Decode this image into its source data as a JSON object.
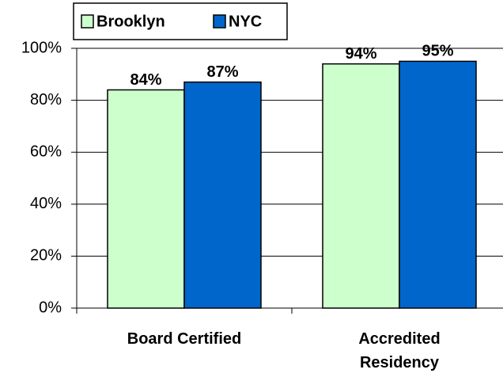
{
  "chart_data": {
    "type": "bar",
    "categories": [
      "Board Certified",
      "Accredited Residency"
    ],
    "series": [
      {
        "name": "Brooklyn",
        "color": "#ccffcc",
        "values": [
          84,
          94
        ],
        "value_labels": [
          "84%",
          "94%"
        ]
      },
      {
        "name": "NYC",
        "color": "#0066cc",
        "values": [
          87,
          95
        ],
        "value_labels": [
          "87%",
          "95%"
        ]
      }
    ],
    "ylim": [
      0,
      100
    ],
    "yticks": [
      {
        "value": 0,
        "label": "0%"
      },
      {
        "value": 20,
        "label": "20%"
      },
      {
        "value": 40,
        "label": "40%"
      },
      {
        "value": 60,
        "label": "60%"
      },
      {
        "value": 80,
        "label": "80%"
      },
      {
        "value": 100,
        "label": "100%"
      }
    ],
    "grid": true,
    "legend": "top"
  }
}
